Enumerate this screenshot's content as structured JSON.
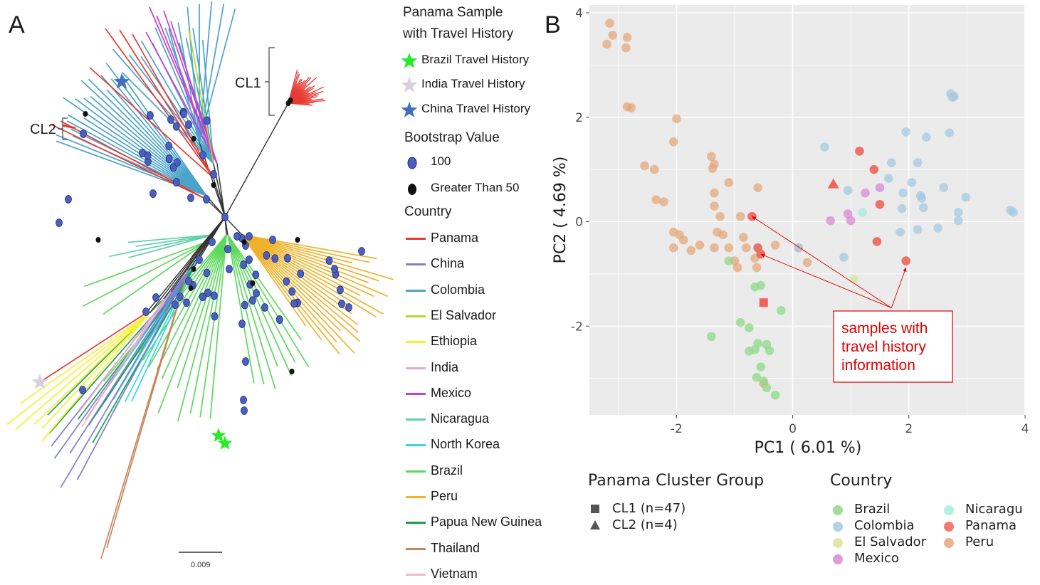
{
  "panel_a": {
    "letter": "A",
    "clusters": [
      "CL1",
      "CL2"
    ],
    "scale_label": "0.009",
    "legend": {
      "travel_title": [
        "Panama Sample",
        "with Travel History"
      ],
      "travel_items": [
        {
          "label": "Brazil Travel History",
          "color": "#22ee22"
        },
        {
          "label": "India Travel History",
          "color": "#d8d0dc"
        },
        {
          "label": "China Travel History",
          "color": "#3f6fbf"
        }
      ],
      "bootstrap_title": "Bootstrap Value",
      "bootstrap_items": [
        {
          "label": "100",
          "color": "#4a5fc0"
        },
        {
          "label": "Greater Than 50",
          "color": "#111111"
        }
      ],
      "country_title": "Country",
      "countries": [
        {
          "label": "Panama",
          "color": "#e63b32"
        },
        {
          "label": "China",
          "color": "#7b7fd6"
        },
        {
          "label": "Colombia",
          "color": "#4aa3c8"
        },
        {
          "label": "El Salvador",
          "color": "#b6d630"
        },
        {
          "label": "Ethiopia",
          "color": "#f2f233"
        },
        {
          "label": "India",
          "color": "#e6a8d4"
        },
        {
          "label": "Mexico",
          "color": "#c63fd0"
        },
        {
          "label": "Nicaragua",
          "color": "#5fd0a8"
        },
        {
          "label": "North Korea",
          "color": "#35d6e6"
        },
        {
          "label": "Brazil",
          "color": "#5ed85e"
        },
        {
          "label": "Peru",
          "color": "#f0b22b"
        },
        {
          "label": "Papua New Guinea",
          "color": "#1f9e48"
        },
        {
          "label": "Thailand",
          "color": "#c8855a"
        },
        {
          "label": "Vietnam",
          "color": "#f6b7c4"
        }
      ]
    }
  },
  "chart_data": {
    "type": "scatter",
    "panel_letter": "B",
    "xlabel": "PC1 ( 6.01 %)",
    "ylabel": "PC2 ( 4.69 %)",
    "xlim": [
      -3.5,
      4.0
    ],
    "ylim": [
      -3.7,
      4.15
    ],
    "xticks": [
      -2,
      0,
      2,
      4
    ],
    "yticks": [
      -2,
      0,
      2,
      4
    ],
    "tick_labels_x": [
      "-2",
      "0",
      "2",
      "4"
    ],
    "tick_labels_y": [
      "-2",
      "0",
      "2",
      "4"
    ],
    "grid": true,
    "annotation": {
      "lines": [
        "samples with",
        "travel history",
        "information"
      ],
      "color": "#e00000",
      "targets": [
        [
          -0.7,
          0.1
        ],
        [
          -0.55,
          -0.62
        ],
        [
          1.95,
          -0.88
        ]
      ],
      "anchor": [
        1.7,
        -1.65
      ]
    },
    "shape_legend": {
      "title": "Panama Cluster Group",
      "items": [
        {
          "label": "CL1 (n=47)",
          "shape": "square"
        },
        {
          "label": "CL2 (n=4)",
          "shape": "triangle"
        }
      ]
    },
    "color_legend": {
      "title": "Country",
      "items": [
        {
          "label": "Brazil",
          "color": "#8fd988"
        },
        {
          "label": "Colombia",
          "color": "#a6c9e0"
        },
        {
          "label": "El Salvador",
          "color": "#dce39a"
        },
        {
          "label": "Mexico",
          "color": "#d889d4"
        },
        {
          "label": "Nicaragu",
          "color": "#a4eedc"
        },
        {
          "label": "Panama",
          "color": "#ee6458"
        },
        {
          "label": "Peru",
          "color": "#e4a87e"
        }
      ]
    },
    "series": [
      {
        "name": "Peru",
        "color": "#e4a87e",
        "points": [
          [
            -3.15,
            3.8
          ],
          [
            -3.1,
            3.57
          ],
          [
            -3.2,
            3.4
          ],
          [
            -2.85,
            3.53
          ],
          [
            -2.87,
            3.33
          ],
          [
            -2.85,
            2.2
          ],
          [
            -2.78,
            2.18
          ],
          [
            -2.0,
            1.97
          ],
          [
            -2.05,
            1.53
          ],
          [
            -1.4,
            1.25
          ],
          [
            -1.35,
            1.1
          ],
          [
            -1.38,
            1.02
          ],
          [
            -2.55,
            1.07
          ],
          [
            -2.38,
            1.0
          ],
          [
            -2.35,
            0.42
          ],
          [
            -2.22,
            0.38
          ],
          [
            -1.1,
            0.75
          ],
          [
            -0.6,
            0.65
          ],
          [
            -1.35,
            0.55
          ],
          [
            -1.35,
            0.3
          ],
          [
            -1.25,
            0.1
          ],
          [
            -0.9,
            0.1
          ],
          [
            -2.05,
            -0.2
          ],
          [
            -1.95,
            -0.25
          ],
          [
            -1.88,
            -0.35
          ],
          [
            -1.3,
            -0.2
          ],
          [
            -1.2,
            -0.25
          ],
          [
            -0.85,
            -0.3
          ],
          [
            -2.05,
            -0.5
          ],
          [
            -1.75,
            -0.55
          ],
          [
            -1.6,
            -0.45
          ],
          [
            -1.35,
            -0.5
          ],
          [
            -1.1,
            -0.5
          ],
          [
            -0.8,
            -0.5
          ],
          [
            -1.0,
            -0.75
          ],
          [
            -0.95,
            -0.88
          ],
          [
            -0.65,
            -0.7
          ],
          [
            -0.62,
            -0.88
          ],
          [
            -0.3,
            -0.45
          ],
          [
            0.1,
            -0.5
          ],
          [
            0.25,
            -0.78
          ],
          [
            -0.5,
            -3.1
          ]
        ]
      },
      {
        "name": "Brazil",
        "color": "#8fd988",
        "points": [
          [
            -1.1,
            -0.75
          ],
          [
            -0.65,
            -1.25
          ],
          [
            -0.55,
            -1.22
          ],
          [
            -0.2,
            -1.7
          ],
          [
            -0.9,
            -1.93
          ],
          [
            -0.75,
            -2.03
          ],
          [
            -1.4,
            -2.2
          ],
          [
            -0.6,
            -2.33
          ],
          [
            -0.65,
            -2.45
          ],
          [
            -0.45,
            -2.35
          ],
          [
            -0.4,
            -2.47
          ],
          [
            -0.75,
            -2.48
          ],
          [
            -0.55,
            -2.78
          ],
          [
            -0.62,
            -2.98
          ],
          [
            -0.5,
            -3.05
          ],
          [
            -0.45,
            -3.18
          ],
          [
            -0.3,
            -3.32
          ]
        ]
      },
      {
        "name": "Colombia",
        "color": "#a6c9e0",
        "points": [
          [
            2.72,
            2.45
          ],
          [
            2.75,
            2.38
          ],
          [
            2.78,
            2.4
          ],
          [
            1.95,
            1.72
          ],
          [
            2.3,
            1.62
          ],
          [
            2.7,
            1.7
          ],
          [
            0.55,
            1.43
          ],
          [
            1.7,
            1.13
          ],
          [
            2.15,
            1.13
          ],
          [
            1.65,
            0.83
          ],
          [
            2.05,
            0.75
          ],
          [
            1.9,
            0.55
          ],
          [
            2.2,
            0.5
          ],
          [
            2.6,
            0.65
          ],
          [
            2.22,
            0.45
          ],
          [
            2.98,
            0.47
          ],
          [
            0.95,
            0.6
          ],
          [
            1.88,
            0.25
          ],
          [
            2.25,
            0.27
          ],
          [
            2.85,
            0.18
          ],
          [
            3.75,
            0.22
          ],
          [
            3.8,
            0.18
          ],
          [
            1.85,
            -0.2
          ],
          [
            2.15,
            -0.15
          ],
          [
            2.5,
            -0.12
          ],
          [
            2.85,
            0.02
          ],
          [
            0.1,
            -0.5
          ],
          [
            0.88,
            -0.68
          ]
        ]
      },
      {
        "name": "Nicaragua",
        "color": "#a4eedc",
        "points": [
          [
            1.2,
            0.18
          ]
        ]
      },
      {
        "name": "Mexico",
        "color": "#d889d4",
        "points": [
          [
            1.5,
            0.65
          ],
          [
            1.25,
            0.55
          ],
          [
            0.65,
            0.02
          ],
          [
            0.95,
            0.15
          ],
          [
            1.0,
            0.02
          ]
        ]
      },
      {
        "name": "El Salvador",
        "color": "#dce39a",
        "points": [
          [
            1.05,
            -1.1
          ]
        ]
      },
      {
        "name": "Panama",
        "color": "#ee6458",
        "points": [
          [
            1.15,
            1.35
          ],
          [
            1.4,
            1.0
          ],
          [
            1.5,
            0.33
          ],
          [
            1.45,
            -0.38
          ],
          [
            -0.7,
            0.1
          ],
          [
            -0.6,
            -0.5
          ],
          [
            1.95,
            -0.75
          ],
          [
            -0.55,
            -0.62
          ]
        ]
      }
    ],
    "cluster_markers": [
      {
        "group": "CL1",
        "shape": "square",
        "color": "#ee6458",
        "x": -0.5,
        "y": -1.55
      },
      {
        "group": "CL2",
        "shape": "triangle",
        "color": "#ee6458",
        "x": 0.7,
        "y": 0.72
      }
    ]
  }
}
